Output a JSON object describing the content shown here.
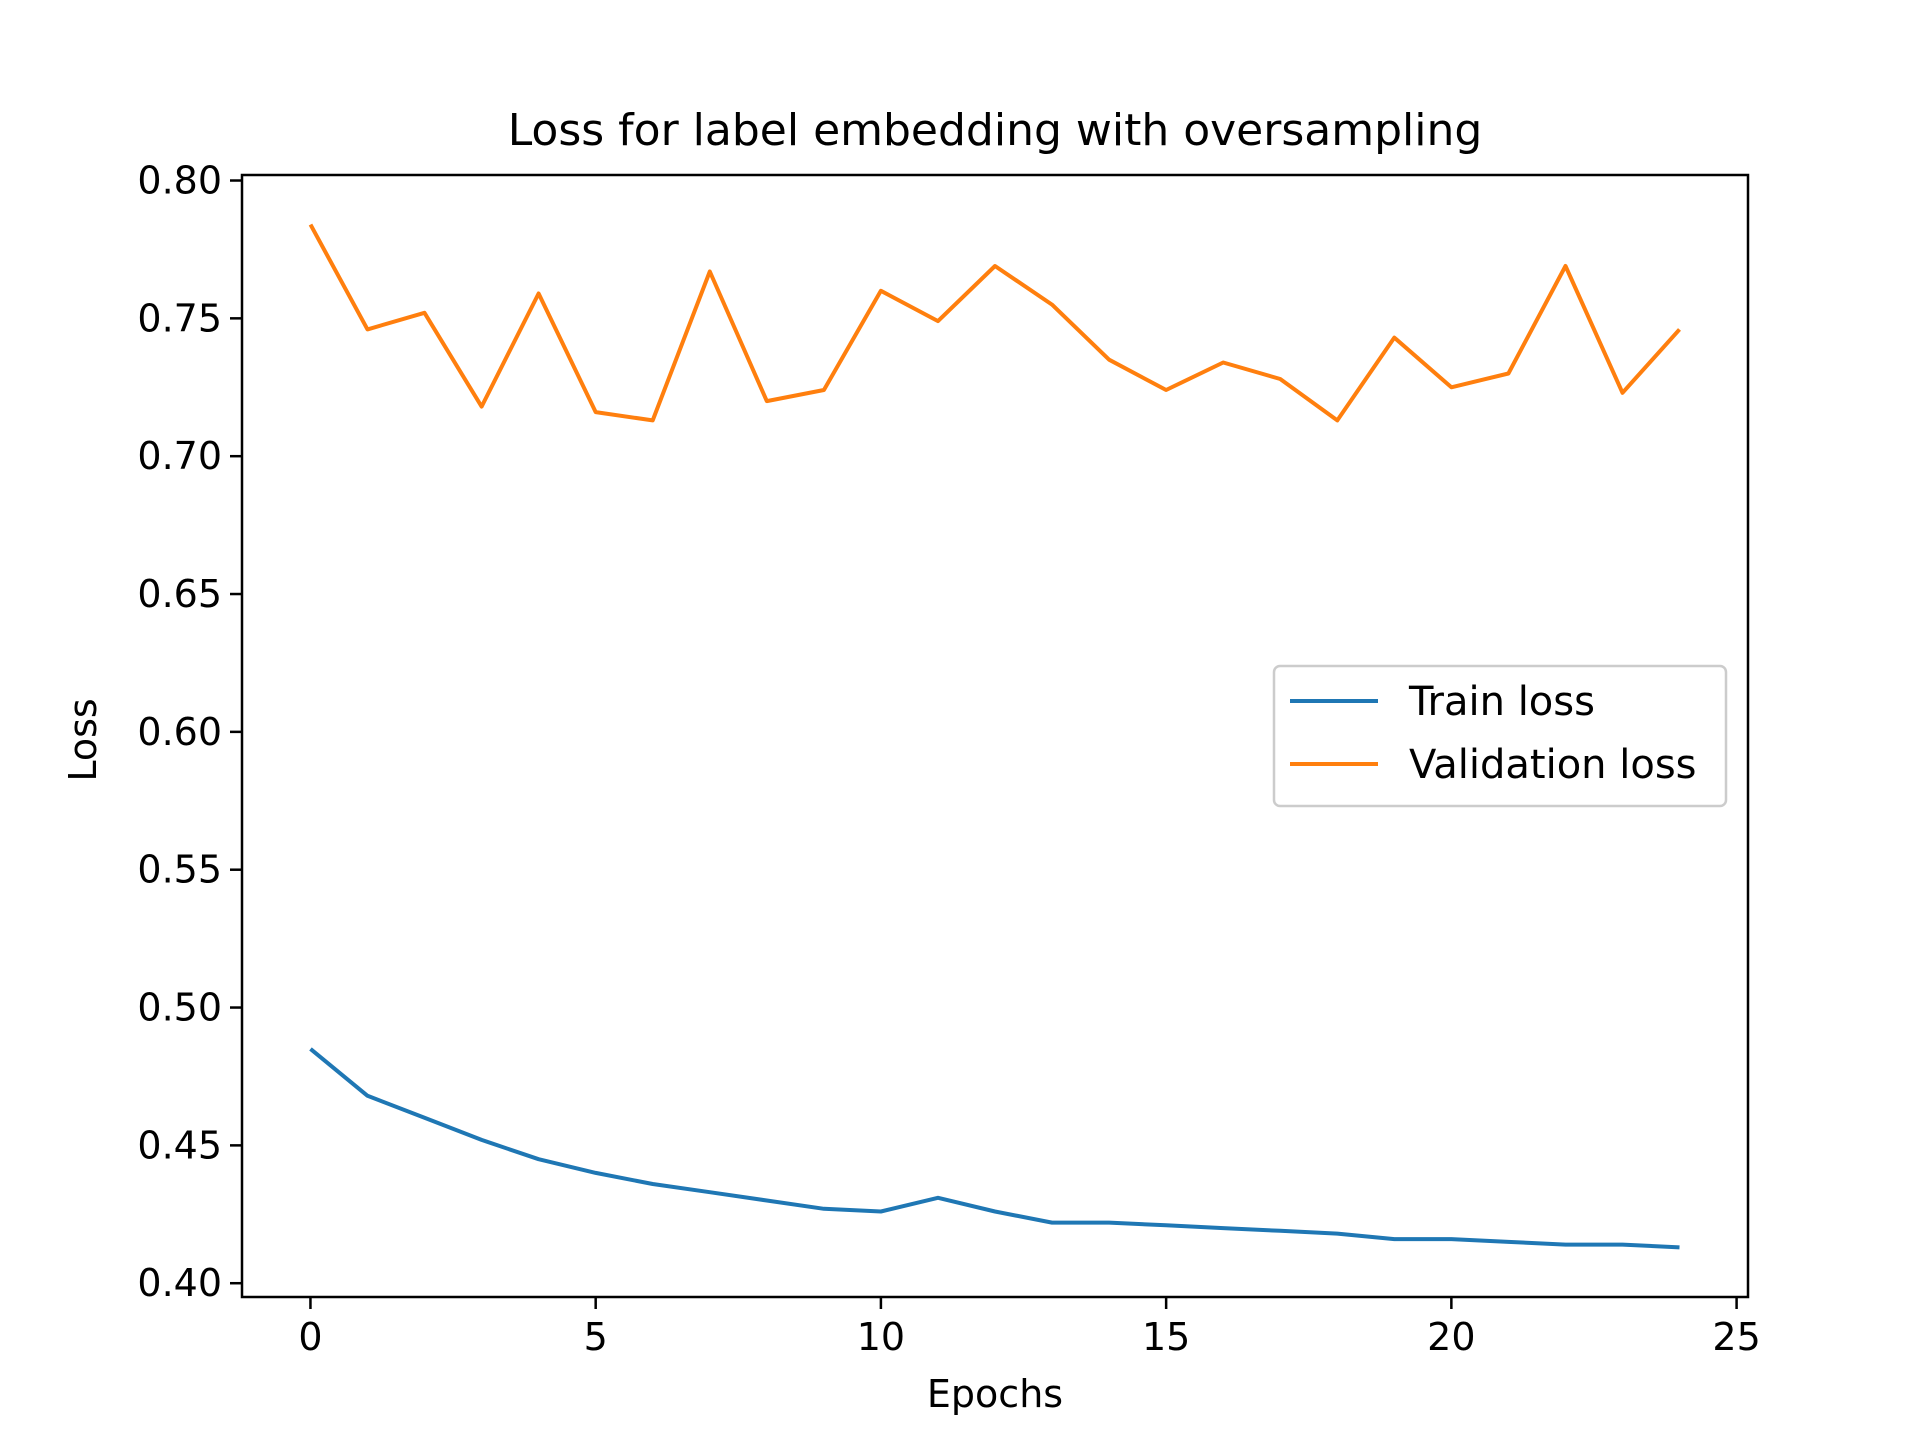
{
  "chart_data": {
    "type": "line",
    "title": "Loss for label embedding with oversampling",
    "xlabel": "Epochs",
    "ylabel": "Loss",
    "xlim": [
      -1.2,
      25.2
    ],
    "ylim": [
      0.395,
      0.802
    ],
    "xticks": [
      0,
      5,
      10,
      15,
      20,
      25
    ],
    "xtick_labels": [
      "0",
      "5",
      "10",
      "15",
      "20",
      "25"
    ],
    "yticks": [
      0.4,
      0.45,
      0.5,
      0.55,
      0.6,
      0.65,
      0.7,
      0.75,
      0.8
    ],
    "ytick_labels": [
      "0.40",
      "0.45",
      "0.50",
      "0.55",
      "0.60",
      "0.65",
      "0.70",
      "0.75",
      "0.80"
    ],
    "grid": false,
    "legend_position": "center-right",
    "x": [
      0,
      1,
      2,
      3,
      4,
      5,
      6,
      7,
      8,
      9,
      10,
      11,
      12,
      13,
      14,
      15,
      16,
      17,
      18,
      19,
      20,
      21,
      22,
      23,
      24
    ],
    "series": [
      {
        "name": "Train loss",
        "color": "#1f77b4",
        "values": [
          0.485,
          0.468,
          0.46,
          0.452,
          0.445,
          0.44,
          0.436,
          0.433,
          0.43,
          0.427,
          0.426,
          0.431,
          0.426,
          0.422,
          0.422,
          0.421,
          0.42,
          0.419,
          0.418,
          0.416,
          0.416,
          0.415,
          0.414,
          0.414,
          0.413
        ]
      },
      {
        "name": "Validation loss",
        "color": "#ff7f0e",
        "values": [
          0.784,
          0.746,
          0.752,
          0.718,
          0.759,
          0.716,
          0.713,
          0.767,
          0.72,
          0.724,
          0.76,
          0.749,
          0.769,
          0.755,
          0.735,
          0.724,
          0.734,
          0.728,
          0.713,
          0.743,
          0.725,
          0.73,
          0.769,
          0.723,
          0.746
        ]
      }
    ]
  }
}
